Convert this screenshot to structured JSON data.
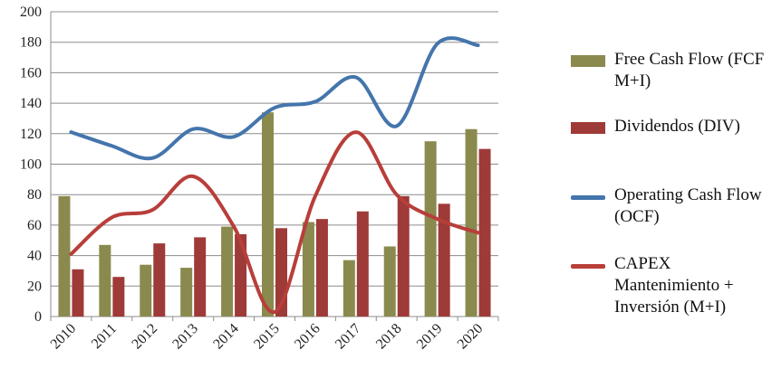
{
  "chart_data": {
    "type": "bar",
    "categories": [
      "2010",
      "2011",
      "2012",
      "2013",
      "2014",
      "2015",
      "2016",
      "2017",
      "2018",
      "2019",
      "2020"
    ],
    "series": [
      {
        "name": "Free Cash Flow (FCF M+I)",
        "kind": "bar",
        "color": "#8a8a4e",
        "values": [
          79,
          47,
          34,
          32,
          59,
          134,
          62,
          37,
          46,
          115,
          123
        ]
      },
      {
        "name": "Dividendos (DIV)",
        "kind": "bar",
        "color": "#9e3a38",
        "values": [
          31,
          26,
          48,
          52,
          54,
          58,
          64,
          69,
          79,
          74,
          110
        ]
      },
      {
        "name": "Operating Cash Flow (OCF)",
        "kind": "line",
        "color": "#4475ac",
        "values": [
          121,
          112,
          104,
          123,
          118,
          137,
          141,
          157,
          125,
          179,
          178
        ]
      },
      {
        "name": "CAPEX Mantenimiento + Inversión (M+I)",
        "kind": "line",
        "color": "#b83e3a",
        "values": [
          41,
          65,
          70,
          92,
          59,
          3,
          79,
          121,
          80,
          64,
          55
        ]
      }
    ],
    "ylim": [
      0,
      200
    ],
    "yticks": [
      "0",
      "20",
      "40",
      "60",
      "80",
      "100",
      "120",
      "140",
      "160",
      "180",
      "200"
    ],
    "grid": true,
    "legend_position": "right",
    "title": "",
    "xlabel": "",
    "ylabel": ""
  },
  "legend": {
    "fcf": "Free Cash Flow (FCF M+I)",
    "div": "Dividendos (DIV)",
    "ocf": "Operating Cash Flow (OCF)",
    "capex": "CAPEX Mantenimiento + Inversión (M+I)"
  },
  "colors": {
    "fcf": "#8a8a4e",
    "div": "#9e3a38",
    "ocf": "#4475ac",
    "capex": "#b83e3a",
    "grid": "#8c8c8c",
    "axis": "#8c8c8c"
  }
}
